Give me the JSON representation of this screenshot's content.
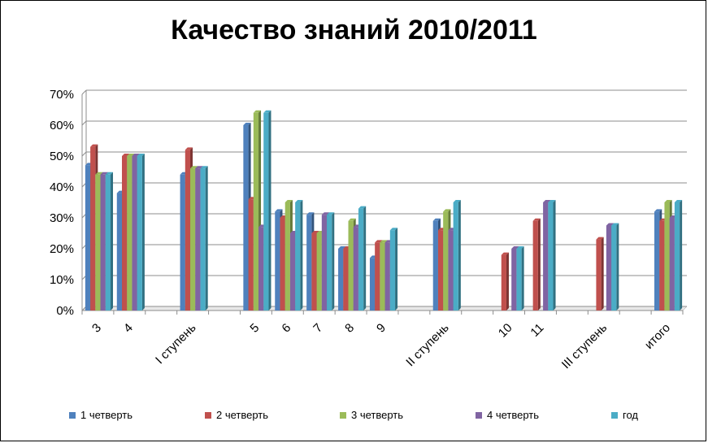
{
  "chart_data": {
    "type": "bar",
    "title": "Качество знаний 2010/2011",
    "xlabel": "",
    "ylabel": "",
    "ylim": [
      0,
      70
    ],
    "y_ticks": [
      "0%",
      "10%",
      "20%",
      "30%",
      "40%",
      "50%",
      "60%",
      "70%"
    ],
    "grid": true,
    "legend_position": "bottom",
    "categories": [
      "3",
      "4",
      "",
      "I ступень",
      "",
      "5",
      "6",
      "7",
      "8",
      "9",
      "",
      "II ступень",
      "",
      "10",
      "11",
      "",
      "III ступень",
      "",
      "итого"
    ],
    "series": [
      {
        "name": "1 четверть",
        "color": "#4F81BD",
        "values": [
          47,
          38,
          null,
          44,
          null,
          60,
          32,
          31,
          20,
          17,
          null,
          29,
          null,
          null,
          null,
          null,
          null,
          null,
          32
        ]
      },
      {
        "name": "2 четверть",
        "color": "#C0504D",
        "values": [
          53,
          50,
          null,
          52,
          null,
          36,
          30,
          25,
          20,
          22,
          null,
          26,
          null,
          18,
          29,
          null,
          23,
          null,
          29
        ]
      },
      {
        "name": "3 четверть",
        "color": "#9BBB59",
        "values": [
          44,
          50,
          null,
          46,
          null,
          64,
          35,
          25,
          29,
          22,
          null,
          32,
          null,
          null,
          null,
          null,
          null,
          null,
          35
        ]
      },
      {
        "name": "4 четверть",
        "color": "#8064A2",
        "values": [
          44,
          50,
          null,
          46,
          null,
          27,
          25,
          31,
          27,
          22,
          null,
          26,
          null,
          20,
          35,
          null,
          27.5,
          null,
          30
        ]
      },
      {
        "name": "год",
        "color": "#4BACC6",
        "values": [
          44,
          50,
          null,
          46,
          null,
          64,
          35,
          31,
          33,
          26,
          null,
          35,
          null,
          20,
          35,
          null,
          27.5,
          null,
          35
        ]
      }
    ]
  }
}
